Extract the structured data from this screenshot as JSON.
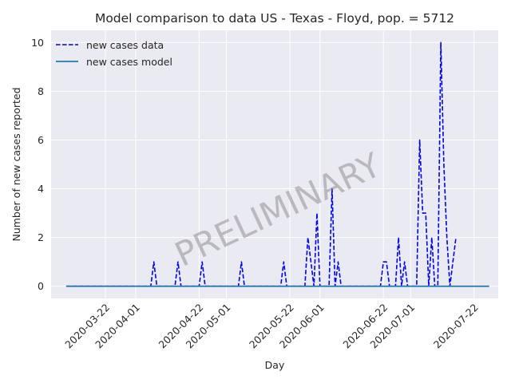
{
  "chart_data": {
    "type": "line",
    "title": "Model comparison to data US - Texas - Floyd, pop. = 5712",
    "xlabel": "Day",
    "ylabel": "Number of new cases reported",
    "watermark": "PRELIMINARY",
    "x_range": [
      "2020-03-04",
      "2020-07-30"
    ],
    "ylim": [
      -0.5,
      10.5
    ],
    "y_ticks": [
      0,
      2,
      4,
      6,
      8,
      10
    ],
    "x_ticks": [
      "2020-03-22",
      "2020-04-01",
      "2020-04-22",
      "2020-05-01",
      "2020-05-22",
      "2020-06-01",
      "2020-06-22",
      "2020-07-01",
      "2020-07-22"
    ],
    "grid": true,
    "legend": {
      "position": "top-left"
    },
    "colors": {
      "background": "#eaeaf2",
      "grid": "#ffffff",
      "data": "#0000ee",
      "model": "#1f77b4"
    },
    "series": [
      {
        "name": "new cases data",
        "style": "dashed",
        "start": "2020-03-09",
        "values": [
          0,
          0,
          0,
          0,
          0,
          0,
          0,
          0,
          0,
          0,
          0,
          0,
          0,
          0,
          0,
          0,
          0,
          0,
          0,
          0,
          0,
          0,
          0,
          0,
          0,
          0,
          0,
          0,
          0,
          1,
          0,
          0,
          0,
          0,
          0,
          0,
          0,
          1,
          0,
          0,
          0,
          0,
          0,
          0,
          0,
          1,
          0,
          0,
          0,
          0,
          0,
          0,
          0,
          0,
          0,
          0,
          0,
          0,
          1,
          0,
          0,
          0,
          0,
          0,
          0,
          0,
          0,
          0,
          0,
          0,
          0,
          0,
          1,
          0,
          0,
          0,
          0,
          0,
          0,
          0,
          2,
          1,
          0,
          3,
          0,
          0,
          0,
          0,
          4,
          0,
          1,
          0,
          0,
          0,
          0,
          0,
          0,
          0,
          0,
          0,
          0,
          0,
          0,
          0,
          0,
          1,
          1,
          0,
          0,
          0,
          2,
          0,
          1,
          0,
          0,
          0,
          0,
          6,
          3,
          3,
          0,
          2,
          0,
          0,
          10,
          5,
          2,
          0,
          1,
          2
        ]
      },
      {
        "name": "new cases model",
        "style": "solid",
        "x": [
          "2020-03-09",
          "2020-07-27"
        ],
        "values": [
          0,
          0
        ]
      }
    ]
  }
}
